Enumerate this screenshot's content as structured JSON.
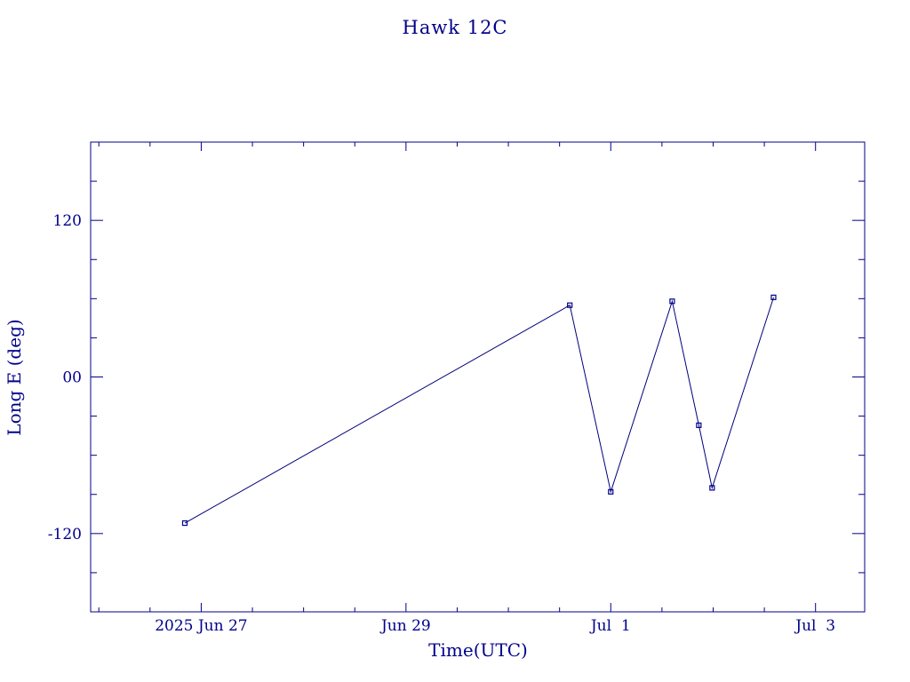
{
  "chart_data": {
    "type": "line",
    "title": "Hawk 12C",
    "xlabel": "Time(UTC)",
    "ylabel": "Long E (deg)",
    "x_ticks": [
      {
        "label": "2025 Jun 27",
        "value": 0.0
      },
      {
        "label": "Jun 29",
        "value": 2.0
      },
      {
        "label": "Jul  1",
        "value": 4.0
      },
      {
        "label": "Jul  3",
        "value": 6.0
      }
    ],
    "y_ticks": [
      {
        "label": "120",
        "value": 120
      },
      {
        "label": "00",
        "value": 0
      },
      {
        "label": "-120",
        "value": -120
      }
    ],
    "xlim": [
      -1.08,
      6.48
    ],
    "ylim": [
      -180,
      180
    ],
    "x_units": "days since 2025 Jun 27 00:00 UTC",
    "series": [
      {
        "x": [
          -0.16,
          3.6,
          4.0,
          4.6,
          4.86,
          4.99,
          5.59
        ],
        "y": [
          -112,
          55,
          -88,
          58,
          -37,
          -85,
          61
        ]
      }
    ],
    "grid": false,
    "colors": {
      "ink": "#00008b",
      "line": "#00007a",
      "background": "#ffffff"
    }
  }
}
